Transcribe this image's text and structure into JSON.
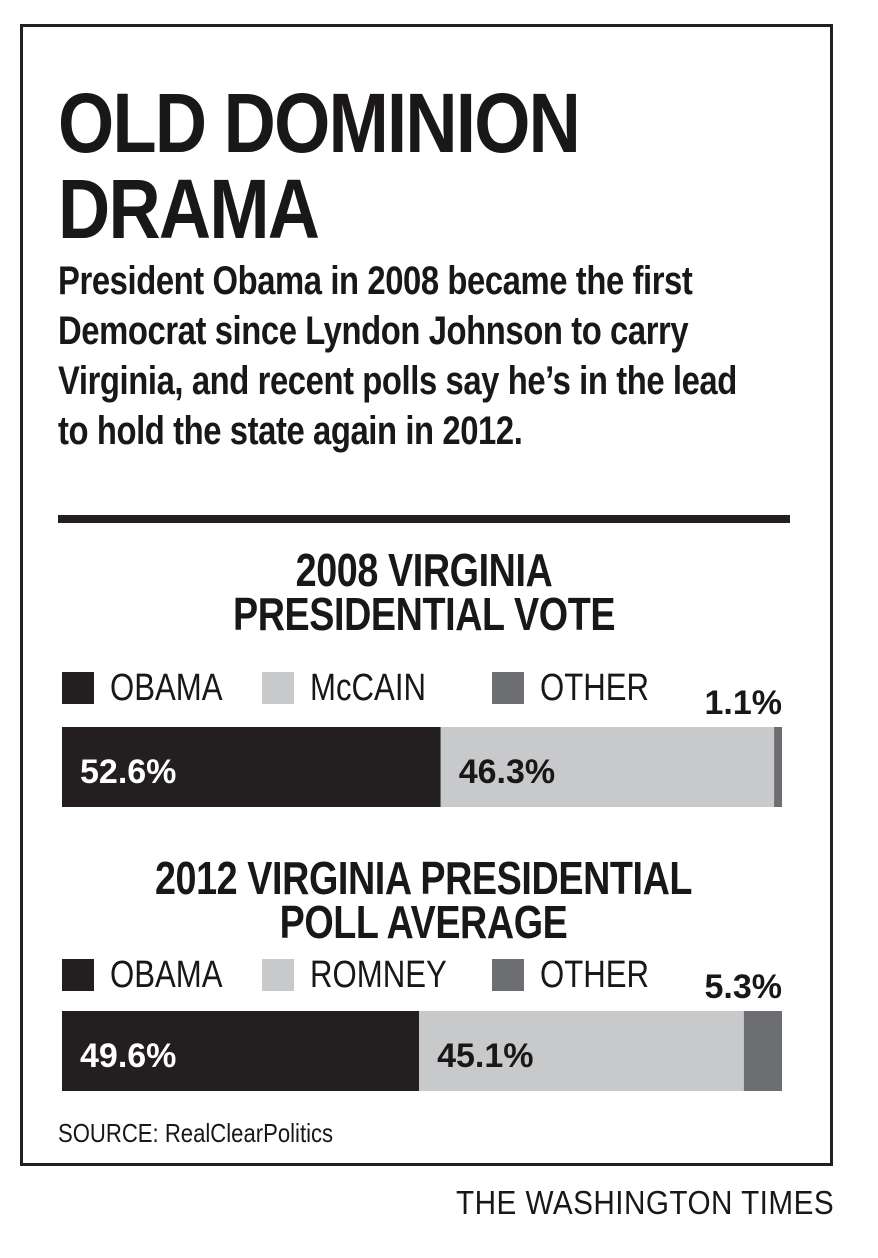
{
  "headline": "OLD DOMINION\nDRAMA",
  "intro": "President Obama in 2008 became the first Democrat since Lyndon Johnson to carry Virginia, and recent polls say he’s in the lead to hold the state again in 2012.",
  "colors": {
    "obama": "#231f20",
    "other_candidate": "#c8c9cb",
    "other": "#6d6e71"
  },
  "chart_data": [
    {
      "type": "bar",
      "stacked": true,
      "orientation": "horizontal",
      "title": "2008 VIRGINIA\nPRESIDENTIAL VOTE",
      "series": [
        {
          "name": "OBAMA",
          "value": 52.6,
          "label": "52.6%",
          "color": "#231f20"
        },
        {
          "name": "McCAIN",
          "value": 46.3,
          "label": "46.3%",
          "color": "#c8c9cb"
        },
        {
          "name": "OTHER",
          "value": 1.1,
          "label": "1.1%",
          "color": "#6d6e71"
        }
      ],
      "total": 100
    },
    {
      "type": "bar",
      "stacked": true,
      "orientation": "horizontal",
      "title": "2012 VIRGINIA PRESIDENTIAL\nPOLL AVERAGE",
      "series": [
        {
          "name": "OBAMA",
          "value": 49.6,
          "label": "49.6%",
          "color": "#231f20"
        },
        {
          "name": "ROMNEY",
          "value": 45.1,
          "label": "45.1%",
          "color": "#c8c9cb"
        },
        {
          "name": "OTHER",
          "value": 5.3,
          "label": "5.3%",
          "color": "#6d6e71"
        }
      ],
      "total": 100
    }
  ],
  "source": "SOURCE: RealClearPolitics",
  "credit": "THE WASHINGTON TIMES"
}
